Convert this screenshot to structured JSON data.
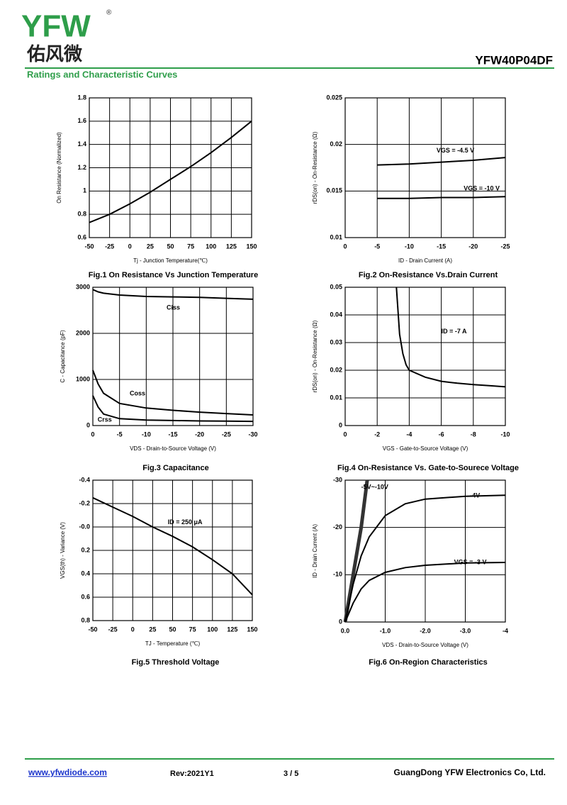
{
  "header": {
    "logo": "YFW",
    "mark": "®",
    "brand_cn": "佑风微",
    "part_number": "YFW40P04DF",
    "section": "Ratings and Characteristic Curves"
  },
  "chart_data": [
    {
      "type": "line",
      "title": "Fig.1 On Resistance Vs Junction Temperature",
      "x_label": "Tj - Junction Temperature(℃)",
      "y_label": "On Resistance (Normalized)",
      "x": [
        -50,
        -25,
        0,
        25,
        50,
        75,
        100,
        125,
        150
      ],
      "series": [
        {
          "color": "#000000",
          "values": [
            0.73,
            0.8,
            0.89,
            0.99,
            1.1,
            1.21,
            1.33,
            1.46,
            1.6
          ]
        }
      ],
      "xlim": [
        -50,
        150
      ],
      "ylim": [
        0.6,
        1.8
      ],
      "xticks": [
        -50,
        -25,
        0,
        25,
        50,
        75,
        100,
        125,
        150
      ],
      "yticks": [
        0.6,
        0.8,
        1,
        1.2,
        1.4,
        1.6,
        1.8
      ],
      "grid": true
    },
    {
      "type": "line",
      "title": "Fig.2 On-Resistance Vs.Drain Current",
      "x_label": "ID - Drain Current (A)",
      "y_label": "rDS(on) - On-Resistance (Ω)",
      "x": [
        -5,
        -10,
        -15,
        -20,
        -25
      ],
      "series": [
        {
          "name": "VGS = -4.5 V",
          "color": "#000000",
          "values": [
            0.0178,
            0.0179,
            0.0181,
            0.0183,
            0.0186
          ]
        },
        {
          "name": "VGS = -10 V",
          "color": "#000000",
          "values": [
            0.0142,
            0.0142,
            0.0143,
            0.0143,
            0.0144
          ]
        }
      ],
      "xlim": [
        0,
        -25
      ],
      "ylim": [
        0.01,
        0.025
      ],
      "xticks": [
        0,
        -5,
        -10,
        -15,
        -20,
        -25
      ],
      "yticks": [
        0.01,
        0.015,
        0.02,
        0.025
      ],
      "grid": true
    },
    {
      "type": "line",
      "title": "Fig.3 Capacitance",
      "x_label": "VDS - Drain-to-Source Voltage (V)",
      "y_label": "C - Capacitance (pF)",
      "x": [
        0,
        -1,
        -2,
        -5,
        -10,
        -15,
        -20,
        -25,
        -30
      ],
      "series": [
        {
          "name": "Ciss",
          "color": "#000000",
          "values": [
            2950,
            2900,
            2870,
            2830,
            2800,
            2790,
            2780,
            2760,
            2740
          ]
        },
        {
          "name": "Coss",
          "color": "#000000",
          "values": [
            1200,
            900,
            700,
            480,
            380,
            330,
            290,
            260,
            230
          ]
        },
        {
          "name": "Crss",
          "color": "#000000",
          "values": [
            650,
            400,
            250,
            150,
            120,
            110,
            100,
            95,
            90
          ]
        }
      ],
      "xlim": [
        0,
        -30
      ],
      "ylim": [
        0,
        3000
      ],
      "xticks": [
        0,
        -5,
        -10,
        -15,
        -20,
        -25,
        -30
      ],
      "yticks": [
        0,
        1000,
        2000,
        3000
      ],
      "grid": true
    },
    {
      "type": "line",
      "title": "Fig.4 On-Resistance Vs. Gate-to-Sourece Voltage",
      "x_label": "VGS - Gate-to-Source Voltage (V)",
      "y_label": "rDS(on) - On-Resistance (Ω)",
      "x": [
        -3.2,
        -3.4,
        -3.6,
        -3.8,
        -4,
        -5,
        -6,
        -7,
        -8,
        -9,
        -10
      ],
      "series": [
        {
          "name": "ID = -7 A",
          "color": "#000000",
          "values": [
            0.05,
            0.033,
            0.026,
            0.022,
            0.02,
            0.0175,
            0.016,
            0.0153,
            0.0148,
            0.0144,
            0.014
          ]
        }
      ],
      "xlim": [
        0,
        -10
      ],
      "ylim": [
        0,
        0.05
      ],
      "xticks": [
        0,
        -2,
        -4,
        -6,
        -8,
        -10
      ],
      "yticks": [
        0,
        0.01,
        0.02,
        0.03,
        0.04,
        0.05
      ],
      "grid": true
    },
    {
      "type": "line",
      "title": "Fig.5 Threshold Voltage",
      "x_label": "TJ - Temperature (℃)",
      "y_label": "VGS(th) - Variance (V)",
      "x": [
        -50,
        -25,
        0,
        25,
        50,
        75,
        100,
        125,
        150
      ],
      "series": [
        {
          "name": "ID = 250 μA",
          "color": "#000000",
          "values": [
            -0.25,
            -0.17,
            -0.09,
            0,
            0.08,
            0.17,
            0.28,
            0.4,
            0.58
          ]
        }
      ],
      "xlim": [
        -50,
        150
      ],
      "ylim": [
        0.8,
        -0.4
      ],
      "xticks": [
        -50,
        -25,
        0,
        25,
        50,
        75,
        100,
        125,
        150
      ],
      "yticks": [
        0.8,
        0.6,
        0.4,
        0.2,
        {
          "value": 0,
          "label": "-0.0"
        },
        -0.2,
        -0.4
      ],
      "grid": true
    },
    {
      "type": "line",
      "title": "Fig.6 On-Region Characteristics",
      "x_label": "VDS - Drain-to-Source Voltage (V)",
      "y_label": "ID - Drain Current (A)",
      "series": [
        {
          "name": "-5V~-10V",
          "color": "#333333",
          "x": [
            0,
            -0.2,
            -0.4,
            -0.55
          ],
          "values": [
            0,
            -10,
            -20,
            -30
          ]
        },
        {
          "name": "-4V",
          "color": "#000000",
          "x": [
            0,
            -0.2,
            -0.4,
            -0.6,
            -1,
            -1.5,
            -2,
            -3,
            -4
          ],
          "values": [
            0,
            -8,
            -14,
            -18,
            -22.5,
            -25,
            -26,
            -26.6,
            -26.8
          ]
        },
        {
          "name": "VGS = -3 V",
          "color": "#000000",
          "x": [
            0,
            -0.2,
            -0.4,
            -0.6,
            -1,
            -1.5,
            -2,
            -3,
            -4
          ],
          "values": [
            0,
            -4,
            -7,
            -8.8,
            -10.5,
            -11.5,
            -12,
            -12.5,
            -12.6
          ]
        }
      ],
      "xlim": [
        0,
        -4
      ],
      "ylim": [
        0,
        -30
      ],
      "xticks": [
        {
          "value": 0,
          "label": "0.0"
        },
        {
          "value": -1,
          "label": "-1.0"
        },
        {
          "value": -2,
          "label": "-2.0"
        },
        {
          "value": -3,
          "label": "-3.0"
        },
        -4
      ],
      "yticks": [
        0,
        -10,
        -20,
        -30
      ],
      "grid": true
    }
  ],
  "footer": {
    "website": "www.yfwdiode.com",
    "revision": "Rev:2021Y1",
    "page": "3 / 5",
    "company": "GuangDong YFW Electronics Co, Ltd."
  }
}
